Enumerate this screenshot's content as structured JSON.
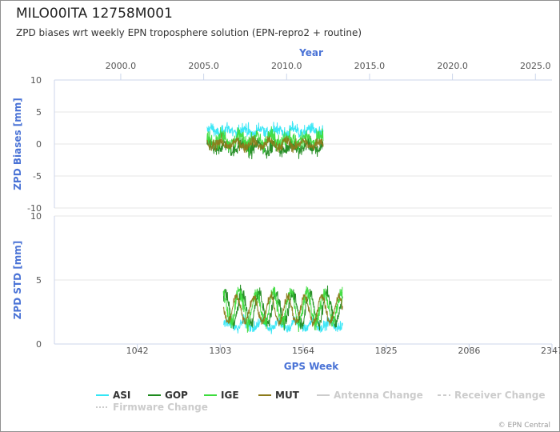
{
  "header": {
    "title": "MILO00ITA 12758M001",
    "subtitle": "ZPD biases wrt weekly EPN troposphere solution (EPN-repro2 + routine)",
    "credits": "© EPN Central"
  },
  "chart_data": [
    {
      "type": "line",
      "panel": "top",
      "ylabel": "ZPD Biases [mm]",
      "ylim": [
        -10,
        10
      ],
      "yticks": [
        "10",
        "5",
        "0",
        "-5",
        "-10"
      ],
      "xlabel": "Year",
      "xlim": [
        1996.0,
        2026.0
      ],
      "xticks": [
        "2000.0",
        "2005.0",
        "2010.0",
        "2015.0",
        "2020.0",
        "2025.0"
      ],
      "x_range_data": [
        2005.2,
        2012.2
      ],
      "series": [
        {
          "name": "ASI",
          "color": "#33e6f5",
          "mean": 2.0,
          "amplitude": 0.5,
          "noise": 1.2
        },
        {
          "name": "GOP",
          "color": "#1e8a1e",
          "mean": -0.5,
          "amplitude": 0.6,
          "noise": 1.3
        },
        {
          "name": "IGE",
          "color": "#3ddc3d",
          "mean": 0.7,
          "amplitude": 0.6,
          "noise": 1.5
        },
        {
          "name": "MUT",
          "color": "#8c7a1a",
          "mean": 0.0,
          "amplitude": 0.5,
          "noise": 1.0
        }
      ]
    },
    {
      "type": "line",
      "panel": "bottom",
      "ylabel": "ZPD STD [mm]",
      "ylim": [
        0,
        10
      ],
      "yticks": [
        "10",
        "5",
        "0"
      ],
      "xlabel": "GPS Week",
      "xlim": [
        781,
        2347
      ],
      "xticks": [
        "1042",
        "1303",
        "1564",
        "1825",
        "2086",
        "2347"
      ],
      "x_range_data": [
        1313,
        1688
      ],
      "series": [
        {
          "name": "ASI",
          "color": "#33e6f5",
          "mean": 1.5,
          "amplitude": 0.3,
          "noise": 0.5
        },
        {
          "name": "GOP",
          "color": "#1e8a1e",
          "mean": 2.8,
          "amplitude": 1.2,
          "noise": 0.6
        },
        {
          "name": "IGE",
          "color": "#3ddc3d",
          "mean": 2.9,
          "amplitude": 1.2,
          "noise": 0.7
        },
        {
          "name": "MUT",
          "color": "#8c7a1a",
          "mean": 2.7,
          "amplitude": 1.0,
          "noise": 0.4
        }
      ]
    }
  ],
  "legend": {
    "items": [
      {
        "label": "ASI",
        "color": "#33e6f5",
        "style": "solid",
        "active": true
      },
      {
        "label": "GOP",
        "color": "#1e8a1e",
        "style": "solid",
        "active": true
      },
      {
        "label": "IGE",
        "color": "#3ddc3d",
        "style": "solid",
        "active": true
      },
      {
        "label": "MUT",
        "color": "#8c7a1a",
        "style": "solid",
        "active": true
      },
      {
        "label": "Antenna Change",
        "color": "#cccccc",
        "style": "solid",
        "active": false
      },
      {
        "label": "Receiver Change",
        "color": "#cccccc",
        "style": "dashed",
        "active": false
      },
      {
        "label": "Firmware Change",
        "color": "#cccccc",
        "style": "dotted",
        "active": false
      }
    ]
  }
}
